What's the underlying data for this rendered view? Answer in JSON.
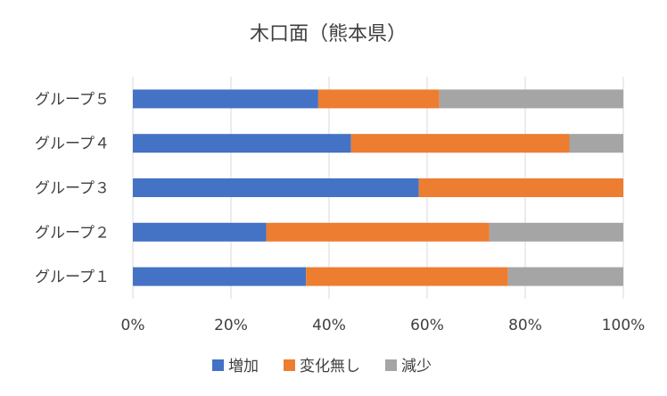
{
  "chart_data": {
    "type": "bar",
    "orientation": "horizontal",
    "stacked": "percent",
    "title": "木口面（熊本県）",
    "categories": [
      "グループ５",
      "グループ４",
      "グループ３",
      "グループ２",
      "グループ１"
    ],
    "series": [
      {
        "name": "増加",
        "color": "#4472C4",
        "values": [
          37.8,
          44.5,
          58.3,
          27.2,
          35.3
        ]
      },
      {
        "name": "変化無し",
        "color": "#ED7D31",
        "values": [
          24.7,
          44.5,
          41.7,
          45.5,
          41.2
        ]
      },
      {
        "name": "減少",
        "color": "#A5A5A5",
        "values": [
          37.5,
          11.0,
          0.0,
          27.3,
          23.5
        ]
      }
    ],
    "x_ticks": [
      "0%",
      "20%",
      "40%",
      "60%",
      "80%",
      "100%"
    ],
    "xlim": [
      0,
      100
    ],
    "grid": true,
    "legend_position": "bottom"
  }
}
